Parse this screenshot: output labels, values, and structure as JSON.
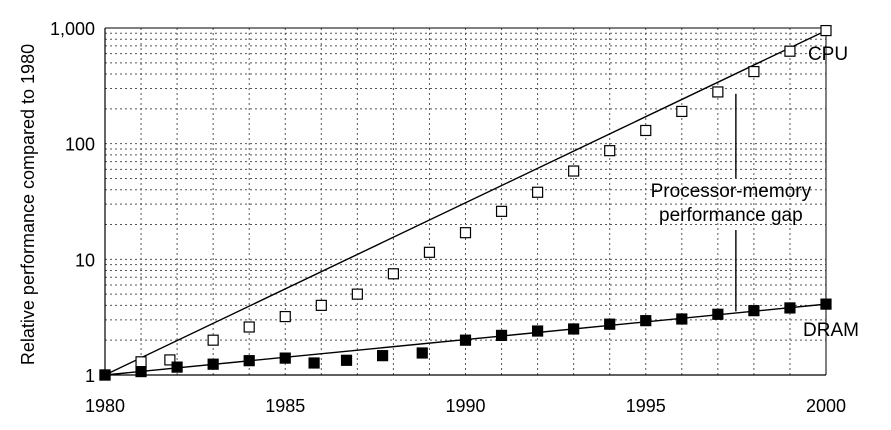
{
  "chart_data": {
    "type": "line",
    "title": "",
    "xlabel": "",
    "ylabel": "Relative performance compared to 1980",
    "yscale": "log",
    "xlim": [
      1980,
      2000
    ],
    "ylim": [
      1,
      1000
    ],
    "grid": true,
    "xticks": [
      1980,
      1985,
      1990,
      1995,
      2000
    ],
    "xtick_labels": [
      "1980",
      "1985",
      "1990",
      "1995",
      "2000"
    ],
    "yticks": [
      1,
      10,
      100,
      1000
    ],
    "ytick_labels": [
      "1",
      "10",
      "100",
      "1,000"
    ],
    "series": [
      {
        "name": "CPU",
        "marker": "open-square",
        "points": [
          [
            1980,
            1.0
          ],
          [
            1981,
            1.3
          ],
          [
            1981.8,
            1.35
          ],
          [
            1983,
            2.0
          ],
          [
            1984,
            2.6
          ],
          [
            1985,
            3.2
          ],
          [
            1986,
            4.0
          ],
          [
            1987,
            5.0
          ],
          [
            1988,
            7.5
          ],
          [
            1989,
            11.5
          ],
          [
            1990,
            17
          ],
          [
            1991,
            26
          ],
          [
            1992,
            38
          ],
          [
            1993,
            58
          ],
          [
            1994,
            87
          ],
          [
            1995,
            130
          ],
          [
            1996,
            190
          ],
          [
            1997,
            280
          ],
          [
            1998,
            420
          ],
          [
            1999,
            630
          ],
          [
            2000,
            950
          ]
        ],
        "trend": [
          [
            1980,
            1.0
          ],
          [
            2000,
            950
          ]
        ]
      },
      {
        "name": "DRAM",
        "marker": "filled-square",
        "points": [
          [
            1980,
            1.0
          ],
          [
            1981,
            1.07
          ],
          [
            1982,
            1.17
          ],
          [
            1983,
            1.24
          ],
          [
            1984,
            1.33
          ],
          [
            1985,
            1.4
          ],
          [
            1985.8,
            1.27
          ],
          [
            1986.7,
            1.34
          ],
          [
            1987.7,
            1.47
          ],
          [
            1988.8,
            1.55
          ],
          [
            1990,
            2.0
          ],
          [
            1991,
            2.2
          ],
          [
            1992,
            2.4
          ],
          [
            1993,
            2.5
          ],
          [
            1994,
            2.75
          ],
          [
            1995,
            2.95
          ],
          [
            1996,
            3.05
          ],
          [
            1997,
            3.35
          ],
          [
            1998,
            3.6
          ],
          [
            1999,
            3.8
          ],
          [
            2000,
            4.1
          ]
        ],
        "trend": [
          [
            1980,
            1.0
          ],
          [
            2000,
            4.1
          ]
        ]
      }
    ],
    "annotations": [
      {
        "text_lines": [
          "Processor-memory",
          "performance gap"
        ],
        "x": 1997.5,
        "y_top": 270,
        "y_bottom": 3.55
      }
    ]
  }
}
